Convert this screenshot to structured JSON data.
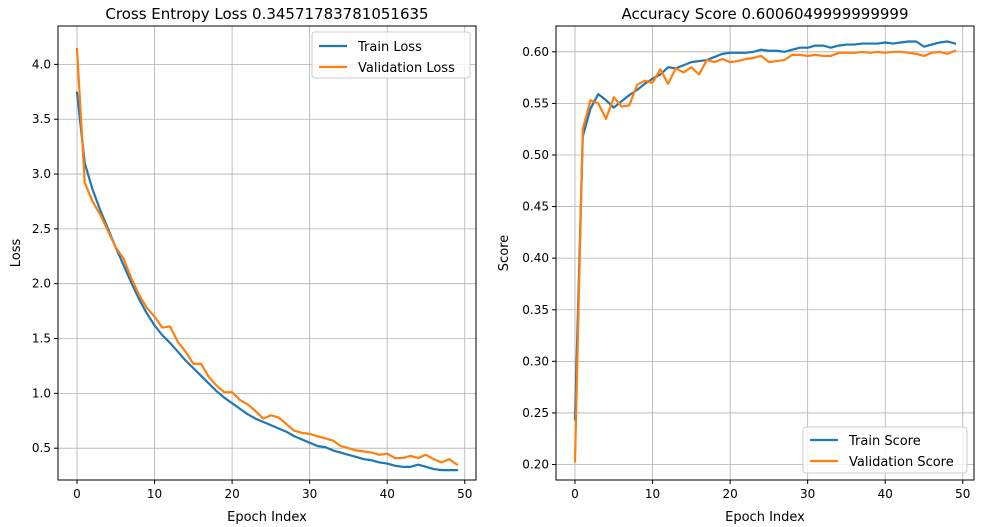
{
  "colors": {
    "train": "#1f77b4",
    "validation": "#ff7f0e"
  },
  "chart_data": [
    {
      "type": "line",
      "title": "Cross Entropy Loss 0.34571783781051635",
      "xlabel": "Epoch Index",
      "ylabel": "Loss",
      "xlim": [
        -2.45,
        51.45
      ],
      "ylim": [
        0.21,
        4.35
      ],
      "xticks": [
        0,
        10,
        20,
        30,
        40,
        50
      ],
      "yticks": [
        0.5,
        1.0,
        1.5,
        2.0,
        2.5,
        3.0,
        3.5,
        4.0
      ],
      "ytick_labels": [
        "0.5",
        "1.0",
        "1.5",
        "2.0",
        "2.5",
        "3.0",
        "3.5",
        "4.0"
      ],
      "legend": "top-right",
      "grid": true,
      "x": [
        0,
        1,
        2,
        3,
        4,
        5,
        6,
        7,
        8,
        9,
        10,
        11,
        12,
        13,
        14,
        15,
        16,
        17,
        18,
        19,
        20,
        21,
        22,
        23,
        24,
        25,
        26,
        27,
        28,
        29,
        30,
        31,
        32,
        33,
        34,
        35,
        36,
        37,
        38,
        39,
        40,
        41,
        42,
        43,
        44,
        45,
        46,
        47,
        48,
        49
      ],
      "series": [
        {
          "name": "Train Loss",
          "color_key": "train",
          "values": [
            3.74,
            3.1,
            2.86,
            2.67,
            2.5,
            2.33,
            2.17,
            2.01,
            1.86,
            1.73,
            1.62,
            1.53,
            1.46,
            1.38,
            1.3,
            1.23,
            1.16,
            1.09,
            1.02,
            0.96,
            0.91,
            0.86,
            0.81,
            0.77,
            0.74,
            0.71,
            0.68,
            0.65,
            0.61,
            0.58,
            0.55,
            0.52,
            0.51,
            0.48,
            0.46,
            0.44,
            0.42,
            0.4,
            0.39,
            0.37,
            0.36,
            0.34,
            0.33,
            0.33,
            0.35,
            0.33,
            0.31,
            0.3,
            0.3,
            0.3
          ]
        },
        {
          "name": "Validation Loss",
          "color_key": "validation",
          "values": [
            4.14,
            2.92,
            2.75,
            2.63,
            2.48,
            2.33,
            2.23,
            2.05,
            1.9,
            1.78,
            1.7,
            1.6,
            1.61,
            1.47,
            1.38,
            1.27,
            1.27,
            1.15,
            1.07,
            1.01,
            1.01,
            0.94,
            0.9,
            0.84,
            0.77,
            0.8,
            0.78,
            0.72,
            0.66,
            0.64,
            0.63,
            0.61,
            0.59,
            0.57,
            0.52,
            0.5,
            0.48,
            0.47,
            0.46,
            0.44,
            0.45,
            0.41,
            0.41,
            0.43,
            0.41,
            0.44,
            0.4,
            0.37,
            0.4,
            0.35
          ]
        }
      ]
    },
    {
      "type": "line",
      "title": "Accuracy Score 0.6006049999999999",
      "xlabel": "Epoch Index",
      "ylabel": "Score",
      "xlim": [
        -2.45,
        51.45
      ],
      "ylim": [
        0.185,
        0.625
      ],
      "xticks": [
        0,
        10,
        20,
        30,
        40,
        50
      ],
      "yticks": [
        0.2,
        0.25,
        0.3,
        0.35,
        0.4,
        0.45,
        0.5,
        0.55,
        0.6
      ],
      "ytick_labels": [
        "0.20",
        "0.25",
        "0.30",
        "0.35",
        "0.40",
        "0.45",
        "0.50",
        "0.55",
        "0.60"
      ],
      "legend": "bottom-right",
      "grid": true,
      "x": [
        0,
        1,
        2,
        3,
        4,
        5,
        6,
        7,
        8,
        9,
        10,
        11,
        12,
        13,
        14,
        15,
        16,
        17,
        18,
        19,
        20,
        21,
        22,
        23,
        24,
        25,
        26,
        27,
        28,
        29,
        30,
        31,
        32,
        33,
        34,
        35,
        36,
        37,
        38,
        39,
        40,
        41,
        42,
        43,
        44,
        45,
        46,
        47,
        48,
        49
      ],
      "series": [
        {
          "name": "Train Score",
          "color_key": "train",
          "values": [
            0.244,
            0.518,
            0.545,
            0.559,
            0.553,
            0.546,
            0.552,
            0.558,
            0.563,
            0.569,
            0.574,
            0.578,
            0.585,
            0.584,
            0.587,
            0.59,
            0.591,
            0.592,
            0.595,
            0.598,
            0.599,
            0.599,
            0.599,
            0.6,
            0.602,
            0.601,
            0.601,
            0.6,
            0.602,
            0.604,
            0.604,
            0.606,
            0.606,
            0.604,
            0.606,
            0.607,
            0.607,
            0.608,
            0.608,
            0.608,
            0.609,
            0.608,
            0.609,
            0.61,
            0.61,
            0.605,
            0.607,
            0.609,
            0.61,
            0.608
          ]
        },
        {
          "name": "Validation Score",
          "color_key": "validation",
          "values": [
            0.203,
            0.525,
            0.553,
            0.55,
            0.535,
            0.556,
            0.547,
            0.548,
            0.568,
            0.572,
            0.57,
            0.583,
            0.569,
            0.584,
            0.58,
            0.585,
            0.578,
            0.592,
            0.59,
            0.593,
            0.59,
            0.591,
            0.593,
            0.594,
            0.596,
            0.59,
            0.591,
            0.592,
            0.597,
            0.597,
            0.596,
            0.597,
            0.596,
            0.596,
            0.599,
            0.599,
            0.599,
            0.6,
            0.599,
            0.6,
            0.599,
            0.6,
            0.6,
            0.599,
            0.598,
            0.596,
            0.599,
            0.6,
            0.598,
            0.601
          ]
        }
      ]
    }
  ]
}
